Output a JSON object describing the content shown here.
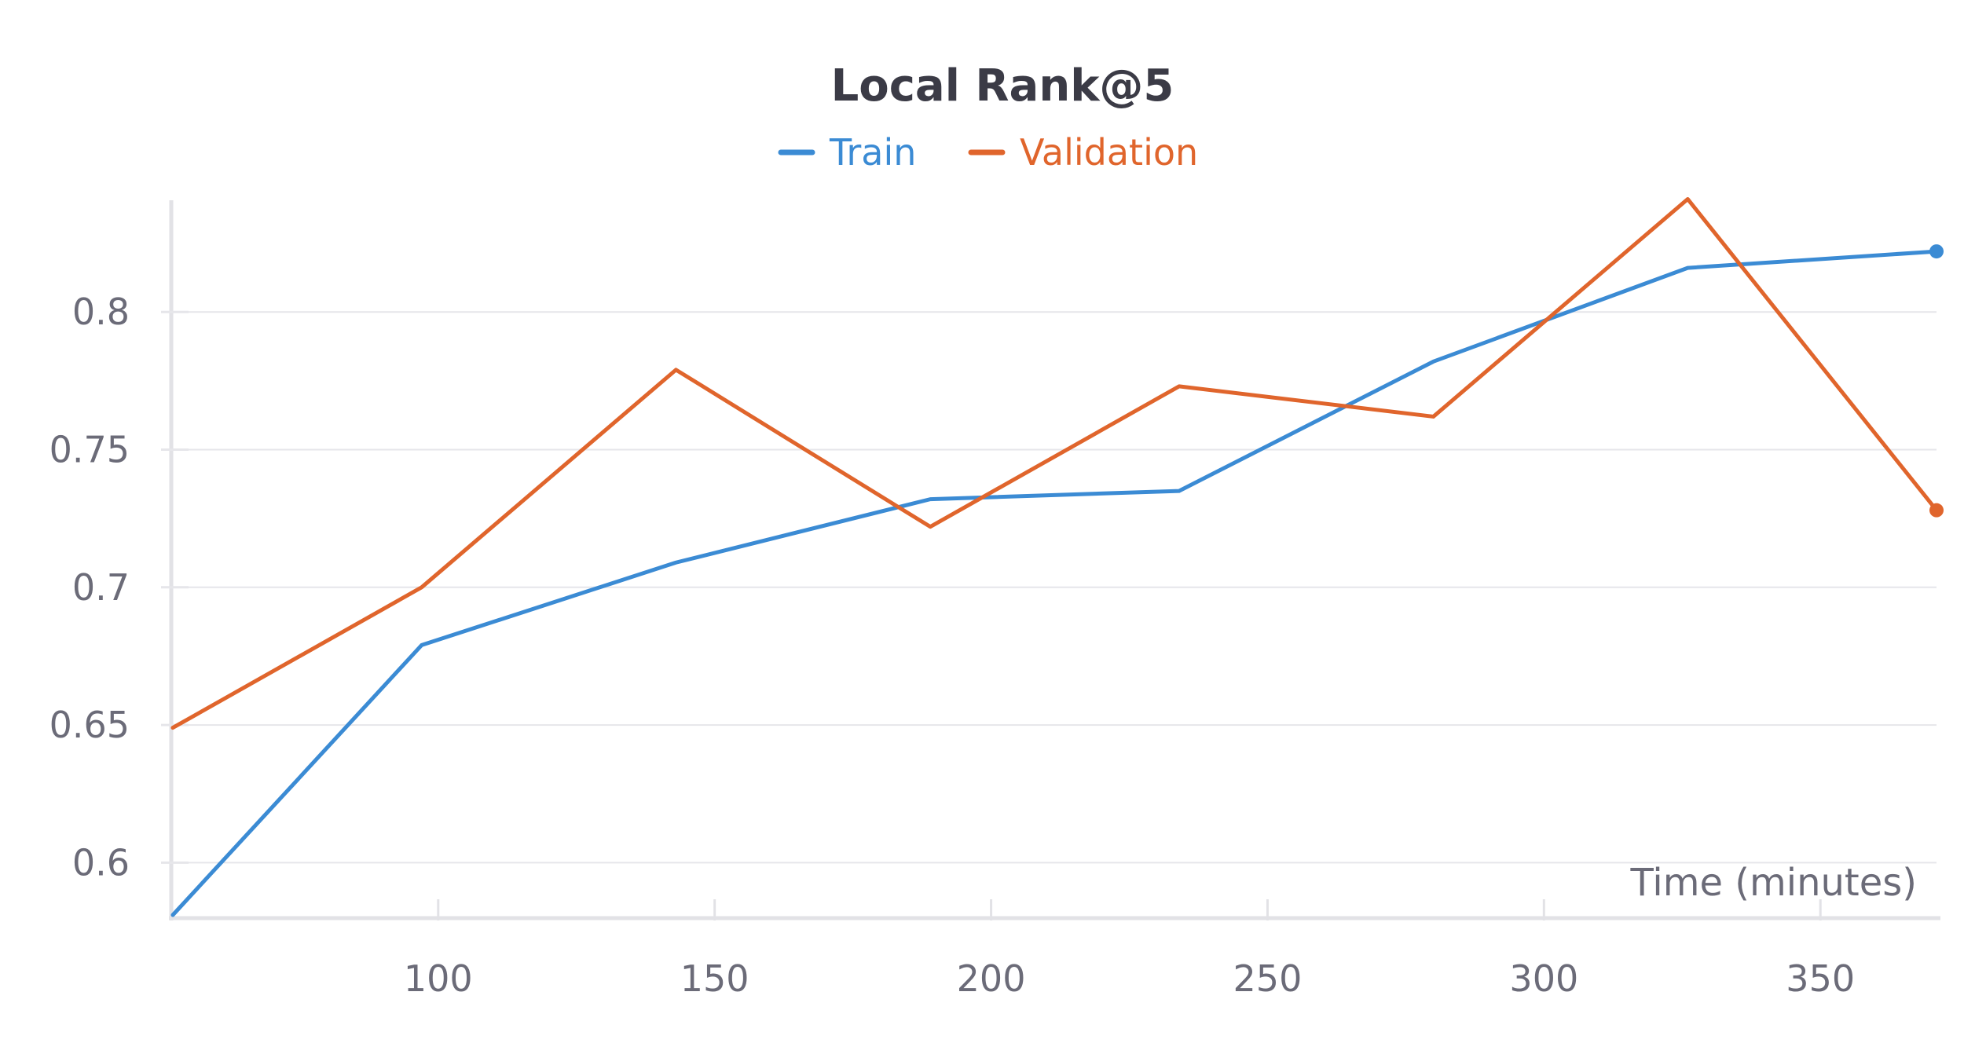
{
  "chart_data": {
    "type": "line",
    "title": "Local Rank@5",
    "xlabel": "Time (minutes)",
    "ylabel": "",
    "xlim": [
      52,
      371
    ],
    "ylim": [
      0.581,
      0.84
    ],
    "x_ticks": [
      100,
      150,
      200,
      250,
      300,
      350
    ],
    "y_ticks": [
      0.6,
      0.65,
      0.7,
      0.75,
      0.8
    ],
    "grid": true,
    "legend_position": "top-center",
    "series": [
      {
        "name": "Train",
        "color": "#3b8bd4",
        "x": [
          52,
          97,
          143,
          189,
          234,
          280,
          326,
          371
        ],
        "values": [
          0.581,
          0.679,
          0.709,
          0.732,
          0.735,
          0.782,
          0.816,
          0.822
        ]
      },
      {
        "name": "Validation",
        "color": "#e0652c",
        "x": [
          52,
          97,
          143,
          189,
          234,
          280,
          326,
          371
        ],
        "values": [
          0.649,
          0.7,
          0.779,
          0.722,
          0.773,
          0.762,
          0.841,
          0.728
        ]
      }
    ]
  }
}
